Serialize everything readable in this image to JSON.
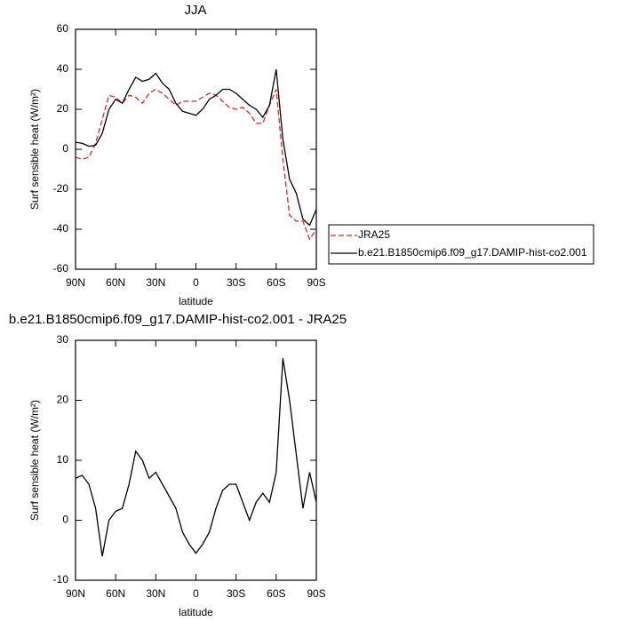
{
  "chart_data": [
    {
      "type": "line",
      "title": "JJA",
      "x_label": "latitude",
      "y_label": "Surf sensible heat (W/m²)",
      "x": [
        90,
        85,
        80,
        75,
        70,
        65,
        60,
        55,
        50,
        45,
        40,
        35,
        30,
        25,
        20,
        15,
        10,
        5,
        0,
        -5,
        -10,
        -15,
        -20,
        -25,
        -30,
        -35,
        -40,
        -45,
        -50,
        -55,
        -60,
        -65,
        -70,
        -75,
        -80,
        -85,
        -90
      ],
      "series": [
        {
          "name": "JRA25",
          "color": "#e8231f",
          "line_style": "dashed",
          "values": [
            -4,
            -5,
            -4,
            3,
            15,
            27,
            26,
            23,
            27,
            26,
            23,
            28,
            30,
            28,
            25,
            22,
            24,
            24,
            24,
            26,
            28,
            27,
            24,
            21,
            20,
            21,
            18,
            13,
            13,
            22,
            30,
            -5,
            -33,
            -36,
            -36,
            -45,
            -40
          ]
        },
        {
          "name": "b.e21.B1850cmip6.f09_g17.DAMIP-hist-co2.001",
          "color": "#000000",
          "line_style": "solid",
          "values": [
            3.5,
            3,
            1.5,
            2,
            8,
            20,
            25,
            23,
            30,
            36,
            34,
            35,
            38,
            33,
            30,
            23,
            19,
            18,
            17,
            20,
            25,
            27,
            30,
            30,
            28,
            25,
            22,
            20,
            16,
            22,
            40,
            5,
            -15,
            -22,
            -35,
            -38,
            -30
          ]
        }
      ],
      "xlim": [
        90,
        -90
      ],
      "xticks": [
        {
          "value": 90,
          "label": "90N"
        },
        {
          "value": 60,
          "label": "60N"
        },
        {
          "value": 30,
          "label": "30N"
        },
        0,
        {
          "value": -30,
          "label": "30S"
        },
        {
          "value": -60,
          "label": "60S"
        },
        {
          "value": -90,
          "label": "90S"
        }
      ],
      "ylim": [
        -60,
        60
      ],
      "yticks": [
        -60,
        -40,
        -20,
        0,
        20,
        40,
        60
      ]
    },
    {
      "type": "line",
      "title": "b.e21.B1850cmip6.f09_g17.DAMIP-hist-co2.001 - JRA25",
      "x_label": "latitude",
      "y_label": "Surf sensible heat (W/m²)",
      "x": [
        90,
        85,
        80,
        75,
        70,
        65,
        60,
        55,
        50,
        45,
        40,
        35,
        30,
        25,
        20,
        15,
        10,
        5,
        0,
        -5,
        -10,
        -15,
        -20,
        -25,
        -30,
        -35,
        -40,
        -45,
        -50,
        -55,
        -60,
        -65,
        -70,
        -75,
        -80,
        -85,
        -90
      ],
      "color": "#000000",
      "values": [
        7,
        7.5,
        6,
        2,
        -6,
        0,
        1.5,
        2,
        6,
        11.5,
        10,
        7,
        8,
        6,
        4,
        2,
        -2,
        -4,
        -5.5,
        -4,
        -2,
        2,
        5,
        6,
        6,
        3,
        0,
        3,
        4.5,
        3,
        8,
        27,
        20,
        11,
        2,
        8,
        3
      ],
      "xlim": [
        90,
        -90
      ],
      "xticks": [
        {
          "value": 90,
          "label": "90N"
        },
        {
          "value": 60,
          "label": "60N"
        },
        {
          "value": 30,
          "label": "30N"
        },
        0,
        {
          "value": -30,
          "label": "30S"
        },
        {
          "value": -60,
          "label": "60S"
        },
        {
          "value": -90,
          "label": "90S"
        }
      ],
      "ylim": [
        -10,
        30
      ],
      "yticks": [
        -10,
        0,
        10,
        20,
        30
      ]
    }
  ]
}
